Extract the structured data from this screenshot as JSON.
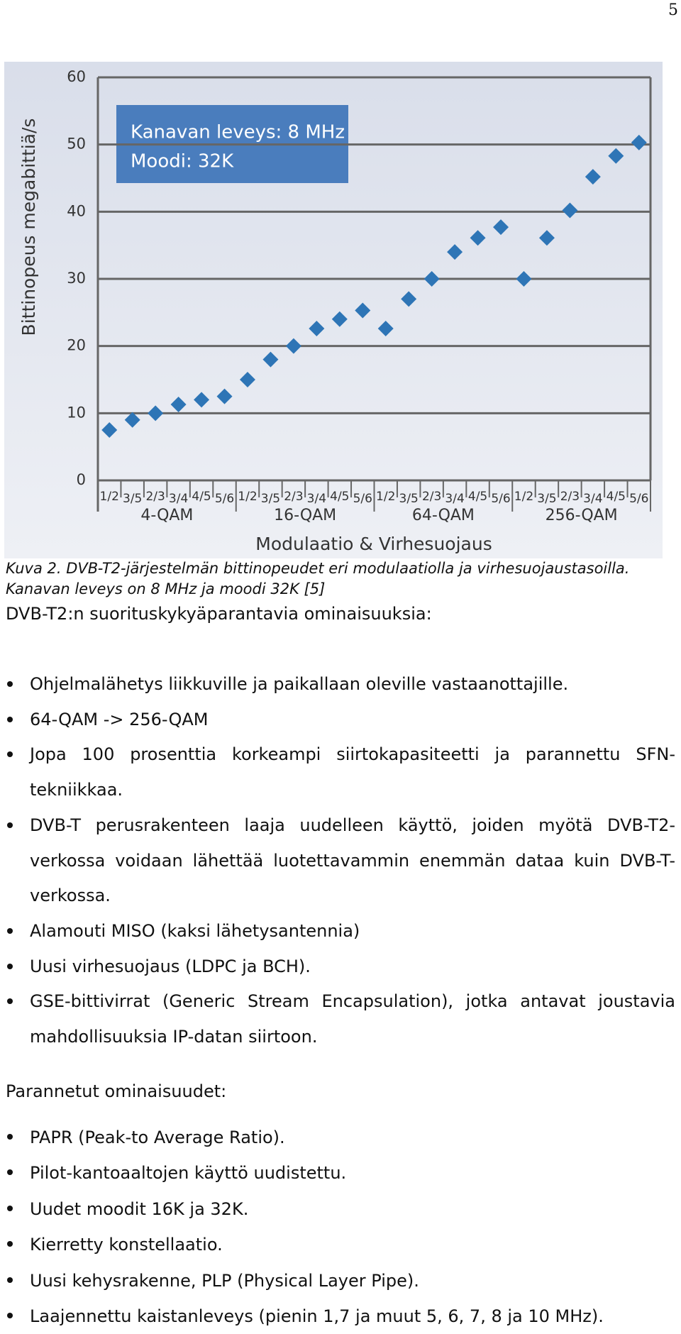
{
  "page_number": "5",
  "chart_data": {
    "type": "scatter",
    "annotation": [
      "Kanavan leveys: 8 MHz",
      "Moodi: 32K"
    ],
    "y_label": "Bittinopeus megabittiä/s",
    "x_label": "Modulaatio & Virhesuojaus",
    "categories": [
      "1/2",
      "3/5",
      "2/3",
      "3/4",
      "4/5",
      "5/6",
      "1/2",
      "3/5",
      "2/3",
      "3/4",
      "4/5",
      "5/6",
      "1/2",
      "3/5",
      "2/3",
      "3/4",
      "4/5",
      "5/6",
      "1/2",
      "3/5",
      "2/3",
      "3/4",
      "4/5",
      "5/6"
    ],
    "groups": [
      "4-QAM",
      "16-QAM",
      "64-QAM",
      "256-QAM"
    ],
    "values": [
      7.5,
      9,
      10,
      11.3,
      12,
      12.5,
      15,
      18,
      20,
      22.6,
      24,
      25.3,
      22.6,
      27,
      30,
      34,
      36.1,
      37.7,
      30,
      36.1,
      40.2,
      45.2,
      48.3,
      50.3
    ],
    "color": "#2e75b6",
    "ylim": [
      0,
      60
    ],
    "yticks": [
      0,
      10,
      20,
      30,
      40,
      50,
      60
    ],
    "grid": true
  },
  "caption": [
    "Kuva 2. DVB-T2-järjestelmän bittinopeudet eri modulaatiolla ja virhesuojaustasoilla.",
    "Kanavan leveys on 8 MHz ja moodi 32K [5]"
  ],
  "section1": {
    "heading": "DVB-T2:n suorituskykyäparantavia ominaisuuksia:",
    "items": [
      "Ohjelmalähetys liikkuville ja paikallaan oleville vastaanottajille.",
      "64-QAM -> 256-QAM",
      "Jopa 100 prosenttia korkeampi siirtokapasiteetti ja parannettu SFN-tekniikkaa.",
      "DVB-T perusrakenteen laaja uudelleen käyttö, joiden myötä DVB-T2-verkossa voidaan lähettää luotettavammin enemmän dataa kuin DVB-T-verkossa.",
      "Alamouti MISO (kaksi lähetysantennia)",
      "Uusi virhesuojaus (LDPC ja BCH).",
      "GSE-bittivirrat (Generic Stream Encapsulation), jotka antavat joustavia mahdollisuuksia IP-datan siirtoon."
    ]
  },
  "section2": {
    "heading": "Parannetut ominaisuudet:",
    "items": [
      "PAPR (Peak-to Average Ratio).",
      "Pilot-kantoaaltojen käyttö uudistettu.",
      "Uudet moodit 16K ja 32K.",
      "Kierretty konstellaatio.",
      "Uusi kehysrakenne, PLP (Physical Layer Pipe).",
      "Laajennettu kaistanleveys (pienin 1,7 ja muut 5, 6, 7, 8 ja 10 MHz)."
    ]
  }
}
